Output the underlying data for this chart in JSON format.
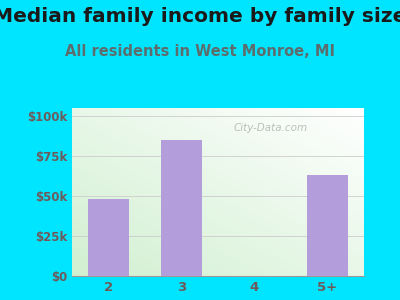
{
  "title": "Median family income by family size",
  "subtitle": "All residents in West Monroe, MI",
  "categories": [
    "2",
    "3",
    "4",
    "5+"
  ],
  "values": [
    48000,
    85000,
    0,
    63000
  ],
  "bar_color": "#b39ddb",
  "background_color": "#00e5ff",
  "yticks": [
    0,
    25000,
    50000,
    75000,
    100000
  ],
  "ytick_labels": [
    "$0",
    "$25k",
    "$50k",
    "$75k",
    "$100k"
  ],
  "ylim": [
    0,
    105000
  ],
  "title_fontsize": 14.5,
  "subtitle_fontsize": 10.5,
  "title_color": "#1a1a1a",
  "subtitle_color": "#5d6d6d",
  "tick_color": "#6d5b5b",
  "watermark": "City-Data.com"
}
